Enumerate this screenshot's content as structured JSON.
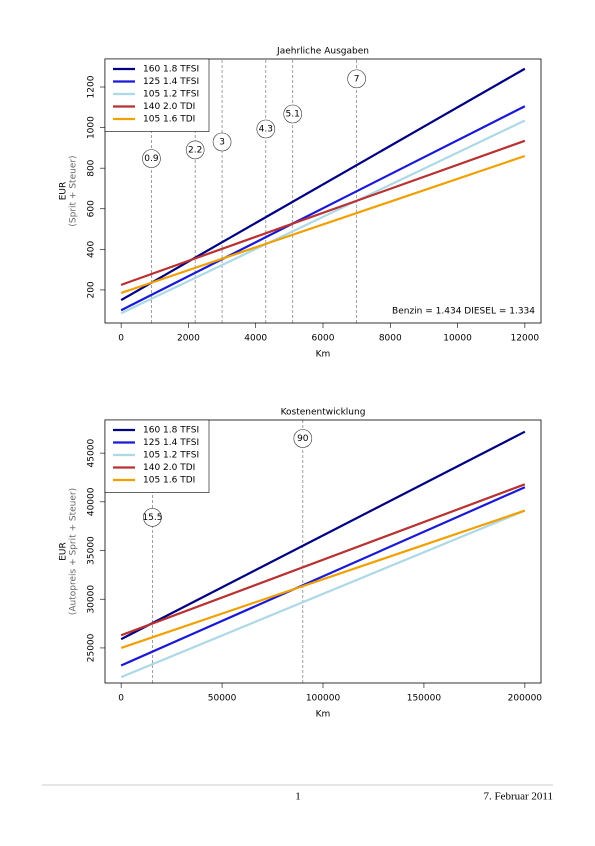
{
  "chart_data": [
    {
      "type": "line",
      "title": "Jaehrliche Ausgaben",
      "x_label": "Km",
      "y_label": "EUR",
      "y_sublabel": "(Sprit + Steuer)",
      "note": "Benzin = 1.434 DIESEL = 1.334",
      "x": [
        0,
        12000
      ],
      "series": [
        {
          "name": "160 1.8 TFSI",
          "color": "#000080",
          "values": [
            150,
            1290
          ]
        },
        {
          "name": "125 1.4 TFSI",
          "color": "#1a1ad6",
          "values": [
            100,
            1105
          ]
        },
        {
          "name": "105 1.2 TFSI",
          "color": "#add8e6",
          "values": [
            85,
            1035
          ]
        },
        {
          "name": "140 2.0 TDI",
          "color": "#b83232",
          "values": [
            225,
            935
          ]
        },
        {
          "name": "105 1.6 TDI",
          "color": "#f0a000",
          "values": [
            185,
            860
          ]
        }
      ],
      "annotations": [
        {
          "x": 900,
          "y": 847,
          "label": "0.9"
        },
        {
          "x": 2200,
          "y": 890,
          "label": "2.2"
        },
        {
          "x": 3000,
          "y": 929,
          "label": "3"
        },
        {
          "x": 4300,
          "y": 993,
          "label": "4.3"
        },
        {
          "x": 5100,
          "y": 1067,
          "label": "5.1"
        },
        {
          "x": 7000,
          "y": 1240,
          "label": "7"
        }
      ],
      "xlim": [
        -480,
        12480
      ],
      "ylim": [
        37,
        1338
      ],
      "xticks": [
        0,
        2000,
        4000,
        6000,
        8000,
        10000,
        12000
      ],
      "yticks": [
        200,
        400,
        600,
        800,
        1000,
        1200
      ]
    },
    {
      "type": "line",
      "title": "Kostenentwicklung",
      "x_label": "Km",
      "y_label": "EUR",
      "y_sublabel": "(Autopreis + Sprit + Steuer)",
      "x": [
        0,
        200000
      ],
      "series": [
        {
          "name": "160 1.8 TFSI",
          "color": "#000080",
          "values": [
            25900,
            47200
          ]
        },
        {
          "name": "125 1.4 TFSI",
          "color": "#1a1ad6",
          "values": [
            23200,
            41500
          ]
        },
        {
          "name": "105 1.2 TFSI",
          "color": "#add8e6",
          "values": [
            22000,
            39100
          ]
        },
        {
          "name": "140 2.0 TDI",
          "color": "#b83232",
          "values": [
            26300,
            41800
          ]
        },
        {
          "name": "105 1.6 TDI",
          "color": "#f0a000",
          "values": [
            25000,
            39100
          ]
        }
      ],
      "annotations": [
        {
          "x": 15500,
          "y": 38400,
          "label": "15.5"
        },
        {
          "x": 90000,
          "y": 46500,
          "label": "90"
        }
      ],
      "xlim": [
        -8000,
        208000
      ],
      "ylim": [
        21400,
        48400
      ],
      "xticks": [
        0,
        50000,
        100000,
        150000,
        200000
      ],
      "yticks": [
        25000,
        30000,
        35000,
        40000,
        45000
      ]
    }
  ],
  "footer": {
    "page": "1",
    "date": "7. Februar 2011"
  }
}
